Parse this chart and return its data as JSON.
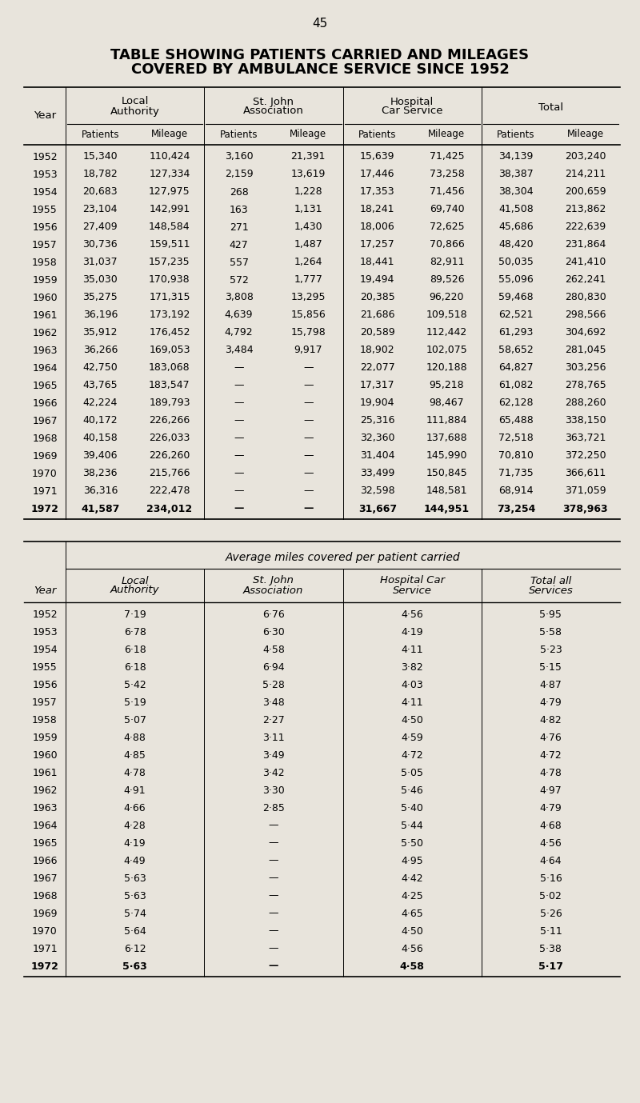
{
  "page_number": "45",
  "title_line1": "TABLE SHOWING PATIENTS CARRIED AND MILEAGES",
  "title_line2": "COVERED BY AMBULANCE SERVICE SINCE 1952",
  "bg_color": "#e8e4dc",
  "table1": {
    "col_groups": [
      "Local\nAuthority",
      "St. John\nAssociation",
      "Hospital\nCar Service",
      "Total"
    ],
    "sub_cols": [
      "Patients",
      "Mileage",
      "Patients",
      "Mileage",
      "Patients",
      "Mileage",
      "Patients",
      "Mileage"
    ],
    "rows": [
      [
        "1952",
        "15,340",
        "110,424",
        "3,160",
        "21,391",
        "15,639",
        "71,425",
        "34,139",
        "203,240"
      ],
      [
        "1953",
        "18,782",
        "127,334",
        "2,159",
        "13,619",
        "17,446",
        "73,258",
        "38,387",
        "214,211"
      ],
      [
        "1954",
        "20,683",
        "127,975",
        "268",
        "1,228",
        "17,353",
        "71,456",
        "38,304",
        "200,659"
      ],
      [
        "1955",
        "23,104",
        "142,991",
        "163",
        "1,131",
        "18,241",
        "69,740",
        "41,508",
        "213,862"
      ],
      [
        "1956",
        "27,409",
        "148,584",
        "271",
        "1,430",
        "18,006",
        "72,625",
        "45,686",
        "222,639"
      ],
      [
        "1957",
        "30,736",
        "159,511",
        "427",
        "1,487",
        "17,257",
        "70,866",
        "48,420",
        "231,864"
      ],
      [
        "1958",
        "31,037",
        "157,235",
        "557",
        "1,264",
        "18,441",
        "82,911",
        "50,035",
        "241,410"
      ],
      [
        "1959",
        "35,030",
        "170,938",
        "572",
        "1,777",
        "19,494",
        "89,526",
        "55,096",
        "262,241"
      ],
      [
        "1960",
        "35,275",
        "171,315",
        "3,808",
        "13,295",
        "20,385",
        "96,220",
        "59,468",
        "280,830"
      ],
      [
        "1961",
        "36,196",
        "173,192",
        "4,639",
        "15,856",
        "21,686",
        "109,518",
        "62,521",
        "298,566"
      ],
      [
        "1962",
        "35,912",
        "176,452",
        "4,792",
        "15,798",
        "20,589",
        "112,442",
        "61,293",
        "304,692"
      ],
      [
        "1963",
        "36,266",
        "169,053",
        "3,484",
        "9,917",
        "18,902",
        "102,075",
        "58,652",
        "281,045"
      ],
      [
        "1964",
        "42,750",
        "183,068",
        "—",
        "—",
        "22,077",
        "120,188",
        "64,827",
        "303,256"
      ],
      [
        "1965",
        "43,765",
        "183,547",
        "—",
        "—",
        "17,317",
        "95,218",
        "61,082",
        "278,765"
      ],
      [
        "1966",
        "42,224",
        "189,793",
        "—",
        "—",
        "19,904",
        "98,467",
        "62,128",
        "288,260"
      ],
      [
        "1967",
        "40,172",
        "226,266",
        "—",
        "—",
        "25,316",
        "111,884",
        "65,488",
        "338,150"
      ],
      [
        "1968",
        "40,158",
        "226,033",
        "—",
        "—",
        "32,360",
        "137,688",
        "72,518",
        "363,721"
      ],
      [
        "1969",
        "39,406",
        "226,260",
        "—",
        "—",
        "31,404",
        "145,990",
        "70,810",
        "372,250"
      ],
      [
        "1970",
        "38,236",
        "215,766",
        "—",
        "—",
        "33,499",
        "150,845",
        "71,735",
        "366,611"
      ],
      [
        "1971",
        "36,316",
        "222,478",
        "—",
        "—",
        "32,598",
        "148,581",
        "68,914",
        "371,059"
      ],
      [
        "1972",
        "41,587",
        "234,012",
        "—",
        "—",
        "31,667",
        "144,951",
        "73,254",
        "378,963"
      ]
    ],
    "bold_last": true
  },
  "table2": {
    "header_span": "Average miles covered per patient carried",
    "col_headers": [
      "Local\nAuthority",
      "St. John\nAssociation",
      "Hospital Car\nService",
      "Total all\nServices"
    ],
    "rows": [
      [
        "1952",
        "7·19",
        "6·76",
        "4·56",
        "5·95"
      ],
      [
        "1953",
        "6·78",
        "6·30",
        "4·19",
        "5·58"
      ],
      [
        "1954",
        "6·18",
        "4·58",
        "4·11",
        "5·23"
      ],
      [
        "1955",
        "6·18",
        "6·94",
        "3·82",
        "5·15"
      ],
      [
        "1956",
        "5·42",
        "5·28",
        "4·03",
        "4·87"
      ],
      [
        "1957",
        "5·19",
        "3·48",
        "4·11",
        "4·79"
      ],
      [
        "1958",
        "5·07",
        "2·27",
        "4·50",
        "4·82"
      ],
      [
        "1959",
        "4·88",
        "3·11",
        "4·59",
        "4·76"
      ],
      [
        "1960",
        "4·85",
        "3·49",
        "4·72",
        "4·72"
      ],
      [
        "1961",
        "4·78",
        "3·42",
        "5·05",
        "4·78"
      ],
      [
        "1962",
        "4·91",
        "3·30",
        "5·46",
        "4·97"
      ],
      [
        "1963",
        "4·66",
        "2·85",
        "5·40",
        "4·79"
      ],
      [
        "1964",
        "4·28",
        "—",
        "5·44",
        "4·68"
      ],
      [
        "1965",
        "4·19",
        "—",
        "5·50",
        "4·56"
      ],
      [
        "1966",
        "4·49",
        "—",
        "4·95",
        "4·64"
      ],
      [
        "1967",
        "5·63",
        "—",
        "4·42",
        "5·16"
      ],
      [
        "1968",
        "5·63",
        "—",
        "4·25",
        "5·02"
      ],
      [
        "1969",
        "5·74",
        "—",
        "4·65",
        "5·26"
      ],
      [
        "1970",
        "5·64",
        "—",
        "4·50",
        "5·11"
      ],
      [
        "1971",
        "6·12",
        "—",
        "4·56",
        "5·38"
      ],
      [
        "1972",
        "5·63",
        "—",
        "4·58",
        "5·17"
      ]
    ],
    "bold_last": true
  }
}
